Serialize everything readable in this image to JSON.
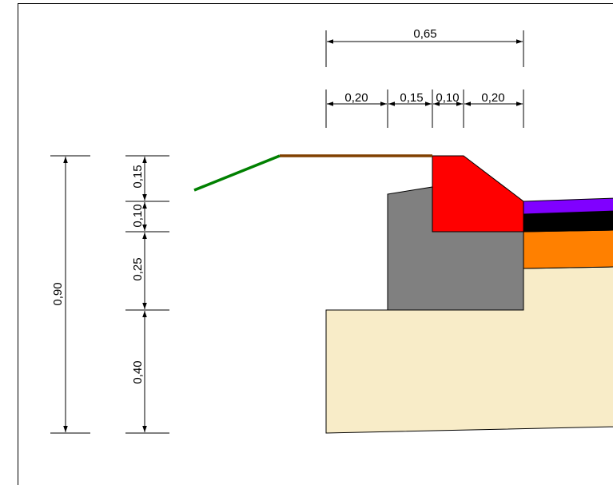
{
  "colors": {
    "soil": "#f8ecc8",
    "concrete": "#808080",
    "curb": "#ff0000",
    "subbase": "#ff8000",
    "base": "#000000",
    "surface": "#8000ff",
    "slope": "#008000",
    "sidewalk": "#804000"
  },
  "dimensions": {
    "top_total": "0,65",
    "top_seg_1": "0,20",
    "top_seg_2": "0,15",
    "top_seg_3": "0,10",
    "top_seg_4": "0,20",
    "left_total": "0,90",
    "left_seg_1": "0,15",
    "left_seg_2": "0,10",
    "left_seg_3": "0,25",
    "left_seg_4": "0,40"
  }
}
